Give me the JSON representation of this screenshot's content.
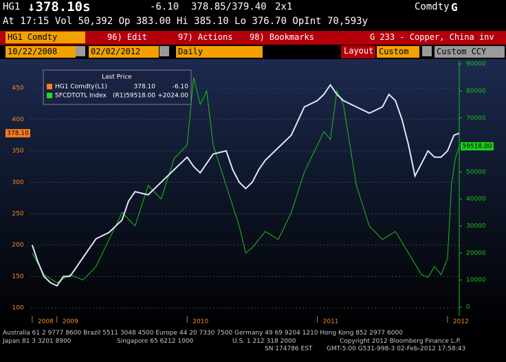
{
  "header": {
    "ticker": "HG1",
    "last": "↓378.10s",
    "change": "-6.10",
    "bid_ask": "378.85/379.40",
    "size": "2x1",
    "sector": "Comdty",
    "function": "G",
    "quote_line": "At 17:15 Vol 50,392 Op 383.00 Hi 385.10 Lo 376.70 OpInt 70,593y"
  },
  "toolbar": {
    "security": "HG1 Comdty",
    "menu": [
      "96) Edit",
      "97) Actions",
      "98) Bookmarks"
    ],
    "chart_name": "G 233 - Copper, China inv"
  },
  "controls": {
    "start_date": "10/22/2008",
    "end_date": "02/02/2012",
    "period": "Daily",
    "layout_label": "Layout",
    "layout": "Custom",
    "currency": "Custom CCY"
  },
  "chart_data": {
    "type": "line",
    "legend_title": "Last Price",
    "grid": true,
    "xlim": [
      2008.8,
      2012.09
    ],
    "xticks": [
      {
        "value": 2008.81,
        "label": "2008"
      },
      2009,
      2010,
      2011,
      2012
    ],
    "ylim": [
      87,
      494
    ],
    "yticks": [
      100,
      150,
      200,
      250,
      300,
      350,
      400,
      450
    ],
    "y2lim": [
      -3300,
      91300
    ],
    "y2ticks": [
      0,
      10000,
      20000,
      30000,
      40000,
      50000,
      60000,
      70000,
      80000,
      90000
    ],
    "series": [
      {
        "name": "HG1 Comdty",
        "axis_tag": "(L1)",
        "last": "378.10",
        "change": "-6.10",
        "color": "#dfe8f8",
        "legend_color": "#ff7f1f",
        "axis": "y",
        "x": [
          2008.81,
          2008.85,
          2008.9,
          2008.95,
          2009.0,
          2009.05,
          2009.1,
          2009.15,
          2009.2,
          2009.3,
          2009.4,
          2009.45,
          2009.5,
          2009.55,
          2009.6,
          2009.7,
          2009.8,
          2009.9,
          2010.0,
          2010.05,
          2010.1,
          2010.2,
          2010.3,
          2010.35,
          2010.4,
          2010.45,
          2010.5,
          2010.55,
          2010.6,
          2010.7,
          2010.8,
          2010.9,
          2011.0,
          2011.05,
          2011.1,
          2011.15,
          2011.2,
          2011.3,
          2011.4,
          2011.5,
          2011.55,
          2011.6,
          2011.65,
          2011.7,
          2011.75,
          2011.8,
          2011.85,
          2011.9,
          2011.95,
          2012.0,
          2012.05,
          2012.09
        ],
        "values": [
          200,
          175,
          150,
          140,
          135,
          150,
          150,
          165,
          180,
          210,
          220,
          230,
          240,
          270,
          285,
          280,
          300,
          320,
          340,
          325,
          315,
          345,
          350,
          320,
          300,
          290,
          300,
          320,
          335,
          355,
          375,
          420,
          430,
          440,
          455,
          440,
          430,
          420,
          410,
          420,
          440,
          430,
          400,
          360,
          310,
          330,
          350,
          340,
          340,
          350,
          375,
          378.1
        ]
      },
      {
        "name": "SFCDTOTL Index",
        "axis_tag": "(R1)",
        "last": "59518.00",
        "change": "+2024.00",
        "color": "#18c418",
        "legend_color": "#18e018",
        "axis": "y2",
        "x": [
          2008.81,
          2008.9,
          2009.0,
          2009.1,
          2009.2,
          2009.3,
          2009.4,
          2009.5,
          2009.6,
          2009.7,
          2009.8,
          2009.9,
          2010.0,
          2010.05,
          2010.1,
          2010.15,
          2010.2,
          2010.3,
          2010.4,
          2010.45,
          2010.5,
          2010.6,
          2010.7,
          2010.8,
          2010.9,
          2011.0,
          2011.05,
          2011.1,
          2011.15,
          2011.2,
          2011.3,
          2011.4,
          2011.5,
          2011.6,
          2011.7,
          2011.8,
          2011.85,
          2011.9,
          2011.95,
          2012.0,
          2012.03,
          2012.06,
          2012.09
        ],
        "values": [
          20000,
          12000,
          9000,
          12000,
          10000,
          15000,
          25000,
          35000,
          30000,
          45000,
          40000,
          55000,
          60000,
          85000,
          75000,
          80000,
          60000,
          45000,
          30000,
          20000,
          22000,
          28000,
          25000,
          35000,
          50000,
          60000,
          65000,
          62000,
          80000,
          75000,
          45000,
          30000,
          25000,
          28000,
          20000,
          12000,
          11000,
          15000,
          12000,
          18000,
          45000,
          55000,
          59518
        ]
      }
    ]
  },
  "footer": {
    "line1": "Australia 61 2 9777 8600 Brazil 5511 3048 4500 Europe 44 20 7330 7500 Germany 49 69 9204 1210 Hong Kong 852 2977 6000",
    "line2": [
      "Japan 81 3 3201 8900",
      "Singapore 65 6212 1000",
      "U.S. 1 212 318 2000",
      "Copyright 2012 Bloomberg Finance L.P."
    ],
    "line3": [
      "SN 174786 EST",
      "GMT-5:00 G531-998-3 02-Feb-2012 17:58:43"
    ]
  }
}
